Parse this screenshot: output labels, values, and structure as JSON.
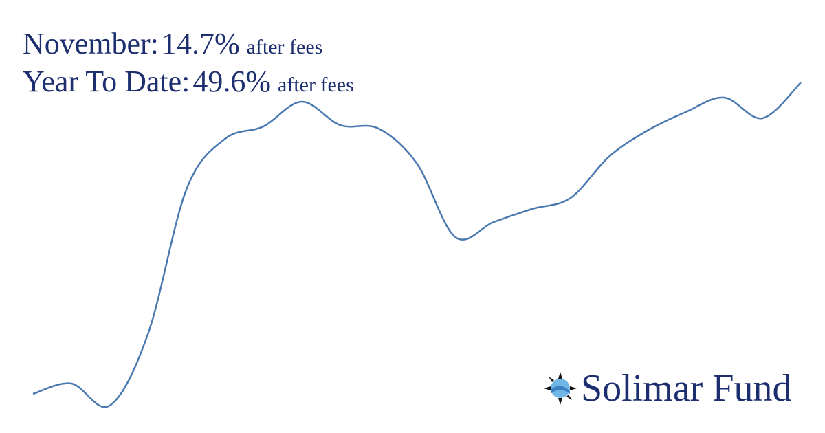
{
  "chart_data": {
    "type": "line",
    "color": "#4a78b0",
    "categories": [
      null,
      null,
      null,
      null,
      null,
      null,
      null,
      null,
      null,
      null,
      null,
      null,
      null,
      null,
      null,
      null,
      null,
      null,
      null,
      null,
      null
    ],
    "values": [
      5.4,
      8.4,
      2,
      23,
      65,
      79.6,
      83.2,
      90.4,
      83.6,
      82.6,
      72.4,
      51,
      55.4,
      59.2,
      62.4,
      74.4,
      82,
      87.4,
      91.6,
      85.6,
      96
    ],
    "ylim": [
      0,
      100
    ]
  },
  "headline": [
    {
      "label": "November:",
      "value": "14.7%",
      "note": "after fees"
    },
    {
      "label": "Year To Date:",
      "value": "49.6%",
      "note": "after fees"
    }
  ],
  "brand": "Solimar Fund"
}
